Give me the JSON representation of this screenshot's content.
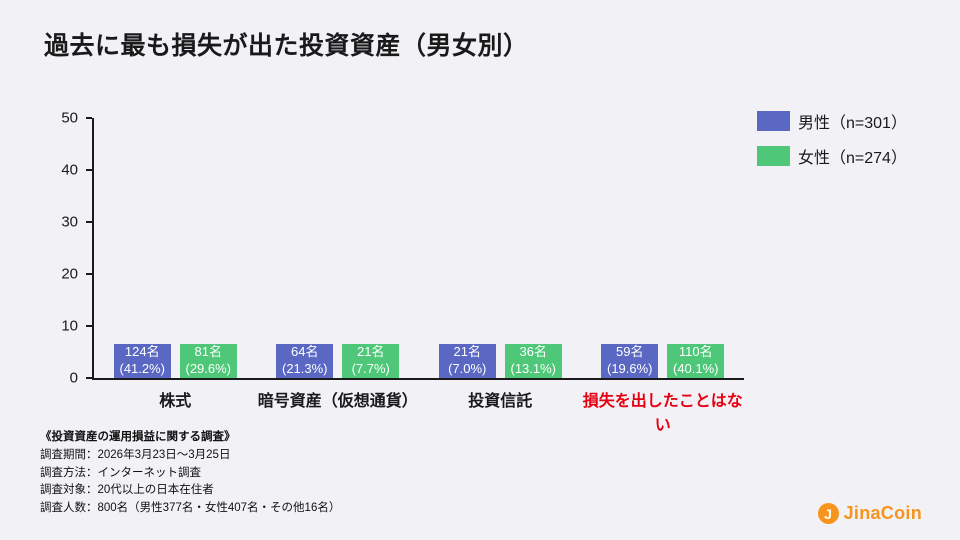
{
  "title": "過去に最も損失が出た投資資産（男女別）",
  "chart_data": {
    "type": "bar",
    "title": "過去に最も損失が出た投資資産（男女別）",
    "categories": [
      "株式",
      "暗号資産（仮想通貨）",
      "投資信託",
      "損失を出したことはない"
    ],
    "category_colors": [
      "#1a1a1a",
      "#1a1a1a",
      "#1a1a1a",
      "#e60012"
    ],
    "series": [
      {
        "name": "男性（n=301）",
        "color": "#5a67c3",
        "values": [
          41.2,
          21.3,
          7.0,
          19.6
        ],
        "bar_labels": [
          [
            "124名",
            "(41.2%)"
          ],
          [
            "64名",
            "(21.3%)"
          ],
          [
            "21名",
            "(7.0%)"
          ],
          [
            "59名",
            "(19.6%)"
          ]
        ]
      },
      {
        "name": "女性（n=274）",
        "color": "#4ec878",
        "values": [
          29.6,
          7.7,
          13.1,
          40.1
        ],
        "bar_labels": [
          [
            "81名",
            "(29.6%)"
          ],
          [
            "21名",
            "(7.7%)"
          ],
          [
            "36名",
            "(13.1%)"
          ],
          [
            "110名",
            "(40.1%)"
          ]
        ]
      }
    ],
    "ylim": [
      0,
      50
    ],
    "yticks": [
      0,
      10,
      20,
      30,
      40,
      50
    ],
    "grid": false,
    "legend_position": "top-right"
  },
  "survey": {
    "title": "《投資資産の運用損益に関する調査》",
    "lines": [
      "調査期間：2026年3月23日〜3月25日",
      "調査方法：インターネット調査",
      "調査対象：20代以上の日本在住者",
      "調査人数：800名（男性377名・女性407名・その他16名）"
    ]
  },
  "logo": {
    "mark": "J",
    "text": "JinaCoin"
  }
}
